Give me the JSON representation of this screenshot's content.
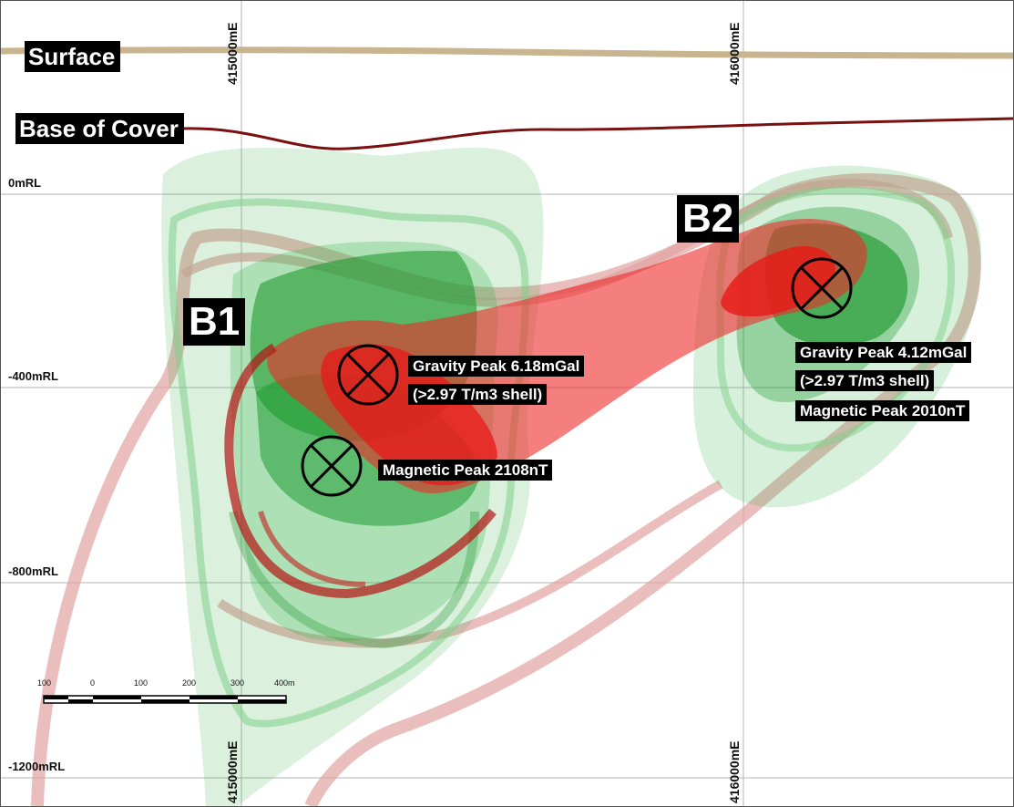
{
  "grid": {
    "easting_labels": [
      "415000mE",
      "416000mE"
    ],
    "rl_labels": [
      "0mRL",
      "-400mRL",
      "-800mRL",
      "-1200mRL"
    ]
  },
  "labels": {
    "surface": "Surface",
    "base_of_cover": "Base of Cover",
    "b1": "B1",
    "b2": "B2"
  },
  "annotations": {
    "b1_gravity_line1": "Gravity Peak 6.18mGal",
    "b1_gravity_line2": "(>2.97 T/m3 shell)",
    "b1_magnetic": "Magnetic Peak 2108nT",
    "b2_gravity_line1": "Gravity Peak 4.12mGal",
    "b2_gravity_line2": "(>2.97 T/m3 shell)",
    "b2_magnetic": "Magnetic Peak 2010nT"
  },
  "scale_bar": {
    "ticks": [
      "100",
      "0",
      "100",
      "200",
      "300",
      "400m"
    ]
  },
  "colors": {
    "surface_line": "#c8b48e",
    "base_cover_line": "#7a1010",
    "gravity_shell": "#e81818",
    "magnetic_shell": "#1e9a30",
    "grid_line": "#b5b5b5"
  }
}
